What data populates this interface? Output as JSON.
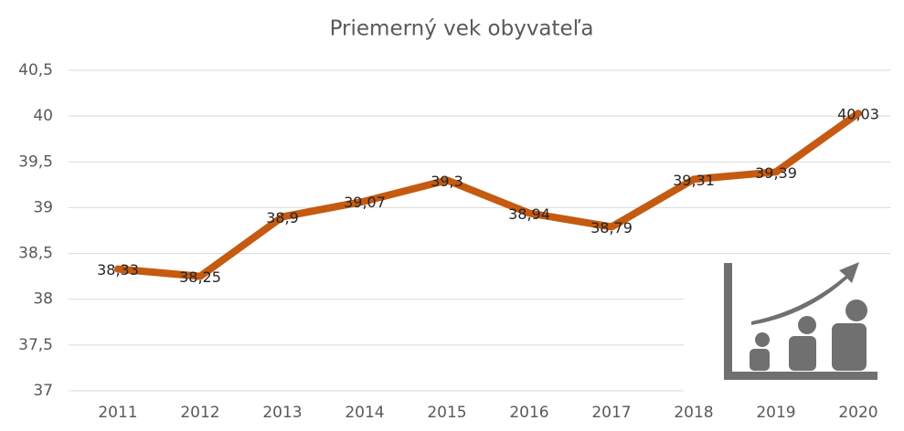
{
  "chart_data": {
    "type": "line",
    "title": "Priemerný vek obyvateľa",
    "categories": [
      "2011",
      "2012",
      "2013",
      "2014",
      "2015",
      "2016",
      "2017",
      "2018",
      "2019",
      "2020"
    ],
    "series": [
      {
        "name": "Priemerný vek",
        "color": "#c55a11",
        "values": [
          38.33,
          38.25,
          38.9,
          39.07,
          39.3,
          38.94,
          38.79,
          39.31,
          39.39,
          40.03
        ],
        "value_labels": [
          "38,33",
          "38,25",
          "38,9",
          "39,07",
          "39,3",
          "38,94",
          "38,79",
          "39,31",
          "39,39",
          "40,03"
        ]
      }
    ],
    "ylim": [
      37,
      40.5
    ],
    "yticks": [
      37,
      {
        "value": 37.5,
        "label": "37,5"
      },
      38,
      {
        "value": 38.5,
        "label": "38,5"
      },
      39,
      {
        "value": 39.5,
        "label": "39,5"
      },
      40,
      {
        "value": 40.5,
        "label": "40,5"
      }
    ],
    "grid": true
  }
}
